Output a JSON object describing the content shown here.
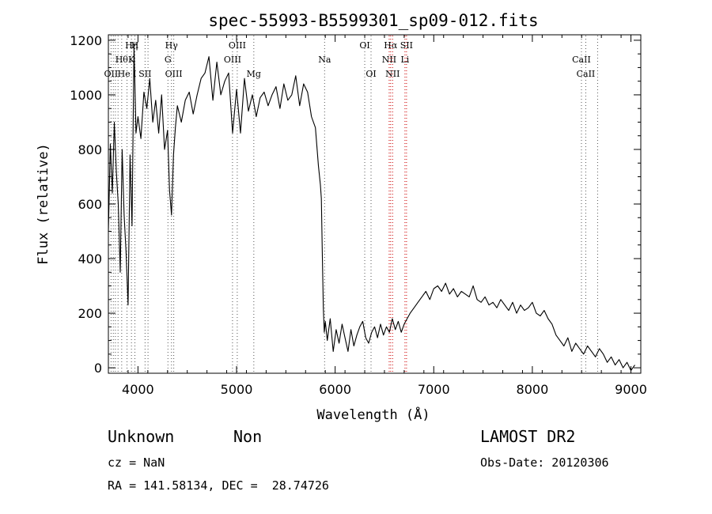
{
  "chart_data": {
    "type": "line",
    "title": "spec-55993-B5599301_sp09-012.fits",
    "xlabel": "Wavelength (Å)",
    "ylabel": "Flux (relative)",
    "xlim": [
      3700,
      9100
    ],
    "ylim": [
      -20,
      1220
    ],
    "xticks": [
      4000,
      5000,
      6000,
      7000,
      8000,
      9000
    ],
    "yticks": [
      0,
      200,
      400,
      600,
      800,
      1000,
      1200
    ],
    "grid": false,
    "series": [
      {
        "x": [
          3700,
          3720,
          3740,
          3760,
          3780,
          3800,
          3820,
          3840,
          3860,
          3880,
          3900,
          3920,
          3940,
          3960,
          3980,
          4000,
          4030,
          4060,
          4090,
          4120,
          4150,
          4180,
          4210,
          4240,
          4270,
          4300,
          4320,
          4340,
          4360,
          4380,
          4400,
          4440,
          4480,
          4520,
          4560,
          4600,
          4640,
          4680,
          4720,
          4760,
          4800,
          4840,
          4880,
          4920,
          4960,
          5000,
          5040,
          5080,
          5120,
          5160,
          5200,
          5240,
          5280,
          5320,
          5360,
          5400,
          5440,
          5480,
          5520,
          5560,
          5600,
          5640,
          5680,
          5720,
          5760,
          5800,
          5830,
          5850,
          5860,
          5870,
          5880,
          5890,
          5900,
          5920,
          5950,
          5980,
          6010,
          6040,
          6070,
          6100,
          6130,
          6160,
          6190,
          6220,
          6250,
          6280,
          6310,
          6340,
          6370,
          6400,
          6430,
          6460,
          6490,
          6520,
          6550,
          6580,
          6610,
          6640,
          6670,
          6700,
          6730,
          6760,
          6800,
          6840,
          6880,
          6920,
          6960,
          7000,
          7040,
          7080,
          7120,
          7160,
          7200,
          7240,
          7280,
          7320,
          7360,
          7400,
          7440,
          7480,
          7520,
          7560,
          7600,
          7640,
          7680,
          7720,
          7760,
          7800,
          7840,
          7880,
          7920,
          7960,
          8000,
          8040,
          8080,
          8120,
          8160,
          8200,
          8240,
          8280,
          8320,
          8360,
          8400,
          8440,
          8480,
          8520,
          8560,
          8600,
          8640,
          8680,
          8720,
          8760,
          8800,
          8840,
          8880,
          8920,
          8960,
          9000,
          9040
        ],
        "y": [
          500,
          820,
          640,
          900,
          720,
          600,
          350,
          800,
          560,
          420,
          230,
          780,
          520,
          1180,
          860,
          920,
          840,
          1010,
          950,
          1060,
          900,
          980,
          860,
          1000,
          800,
          870,
          650,
          560,
          780,
          880,
          960,
          900,
          980,
          1010,
          930,
          1000,
          1060,
          1080,
          1140,
          980,
          1120,
          1000,
          1050,
          1080,
          860,
          1020,
          860,
          1060,
          940,
          1000,
          920,
          990,
          1010,
          960,
          1000,
          1030,
          950,
          1040,
          980,
          1000,
          1070,
          960,
          1040,
          1010,
          920,
          880,
          740,
          670,
          620,
          420,
          220,
          130,
          170,
          100,
          180,
          60,
          140,
          90,
          160,
          110,
          60,
          140,
          80,
          120,
          150,
          170,
          110,
          90,
          130,
          150,
          110,
          160,
          120,
          150,
          130,
          180,
          140,
          170,
          130,
          160,
          180,
          200,
          220,
          240,
          260,
          280,
          250,
          290,
          300,
          280,
          310,
          270,
          290,
          260,
          280,
          270,
          260,
          300,
          250,
          240,
          260,
          230,
          240,
          220,
          250,
          230,
          210,
          240,
          200,
          230,
          210,
          220,
          240,
          200,
          190,
          210,
          180,
          160,
          120,
          100,
          80,
          110,
          60,
          90,
          70,
          50,
          80,
          60,
          40,
          70,
          50,
          20,
          40,
          10,
          30,
          0,
          20,
          -10,
          10
        ]
      }
    ],
    "lines": [
      {
        "x": 3727,
        "labels": [
          "OII"
        ],
        "row": 3
      },
      {
        "x": 3750,
        "labels": [],
        "row": 0
      },
      {
        "x": 3771,
        "labels": [],
        "row": 0
      },
      {
        "x": 3798,
        "labels": [],
        "row": 0
      },
      {
        "x": 3835,
        "labels": [
          "Hθ"
        ],
        "row": 2
      },
      {
        "x": 3889,
        "labels": [
          "He I"
        ],
        "row": 3
      },
      {
        "x": 3934,
        "labels": [
          "Hη",
          "K"
        ],
        "row": 1
      },
      {
        "x": 3969,
        "labels": [
          "H"
        ],
        "row": 1
      },
      {
        "x": 4072,
        "labels": [
          "SII"
        ],
        "row": 3
      },
      {
        "x": 4102,
        "labels": [],
        "row": 0
      },
      {
        "x": 4304,
        "labels": [
          "G"
        ],
        "row": 2
      },
      {
        "x": 4340,
        "labels": [
          "Hγ"
        ],
        "row": 1
      },
      {
        "x": 4363,
        "labels": [
          "OIII"
        ],
        "row": 3
      },
      {
        "x": 4959,
        "labels": [
          "OIII"
        ],
        "row": 2
      },
      {
        "x": 5007,
        "labels": [
          "OIII"
        ],
        "row": 1
      },
      {
        "x": 5175,
        "labels": [
          "Mg"
        ],
        "row": 3
      },
      {
        "x": 5893,
        "labels": [
          "Na"
        ],
        "row": 2
      },
      {
        "x": 6300,
        "labels": [
          "OI"
        ],
        "row": 1
      },
      {
        "x": 6364,
        "labels": [
          "OI"
        ],
        "row": 3
      },
      {
        "x": 6548,
        "labels": [
          "NII"
        ],
        "row": 2,
        "red": true
      },
      {
        "x": 6563,
        "labels": [
          "Hα"
        ],
        "row": 1,
        "red": true
      },
      {
        "x": 6583,
        "labels": [
          "NII"
        ],
        "row": 3,
        "red": true
      },
      {
        "x": 6708,
        "labels": [
          "Li"
        ],
        "row": 2,
        "red": true
      },
      {
        "x": 6724,
        "labels": [
          "SII"
        ],
        "row": 1,
        "red": true
      },
      {
        "x": 8498,
        "labels": [
          "CaII"
        ],
        "row": 2
      },
      {
        "x": 8542,
        "labels": [
          "CaII"
        ],
        "row": 3
      },
      {
        "x": 8662,
        "labels": [],
        "row": 0
      }
    ]
  },
  "info": {
    "class": "Unknown",
    "subclass": "Non",
    "survey": "LAMOST DR2",
    "cz": "cz = NaN",
    "obs_date": "Obs-Date: 20120306",
    "coords": "RA = 141.58134, DEC =  28.74726"
  }
}
